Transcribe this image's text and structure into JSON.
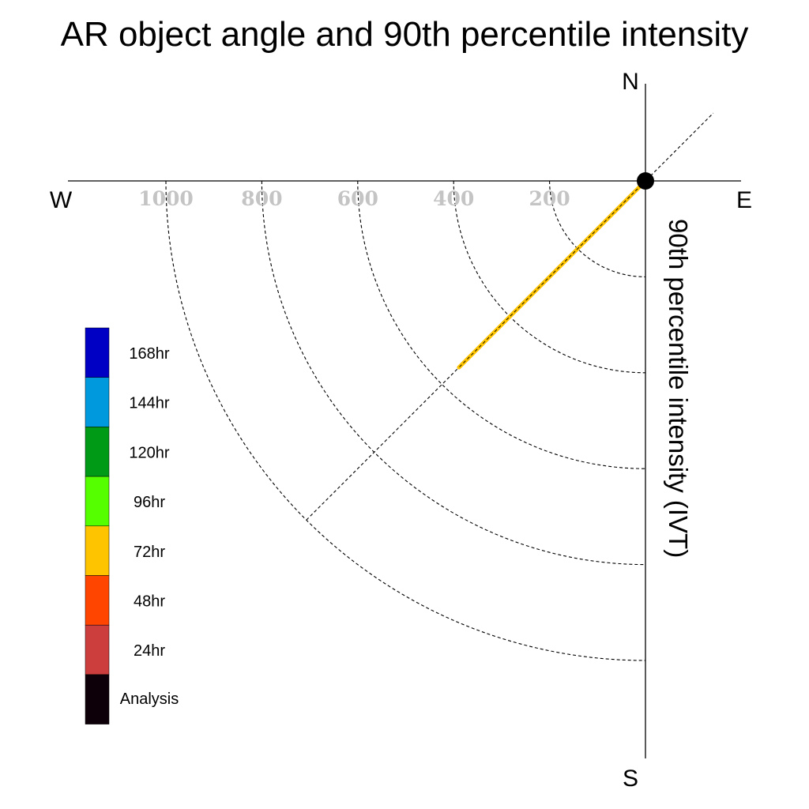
{
  "chart_data": {
    "type": "polar-trajectory",
    "title": "AR object angle and 90th percentile intensity",
    "compass": {
      "north": "N",
      "south": "S",
      "east": "E",
      "west": "W"
    },
    "radial_axis_label": "90th percentile intensity (IVT)",
    "radial_ticks": [
      200,
      400,
      600,
      800,
      1000
    ],
    "radial_tick_labels": [
      "200",
      "400",
      "600",
      "800",
      "1000"
    ],
    "radial_max": 1200,
    "reference_direction_deg": 45,
    "legend": {
      "entries": [
        {
          "label": "168hr",
          "color": "#0000c4"
        },
        {
          "label": "144hr",
          "color": "#0099de"
        },
        {
          "label": "120hr",
          "color": "#009a17"
        },
        {
          "label": "96hr",
          "color": "#55ff00"
        },
        {
          "label": "72hr",
          "color": "#ffc400"
        },
        {
          "label": "48hr",
          "color": "#ff4500"
        },
        {
          "label": "24hr",
          "color": "#cc3d3d"
        },
        {
          "label": "Analysis",
          "color": "#0d0008"
        }
      ]
    },
    "series": [
      {
        "lead": "72hr",
        "color": "#ffc400",
        "points": [
          {
            "angle_deg": 45,
            "intensity": 0
          },
          {
            "angle_deg": 45,
            "intensity": 550
          }
        ]
      }
    ],
    "origin_marker": {
      "color": "#000000"
    }
  }
}
